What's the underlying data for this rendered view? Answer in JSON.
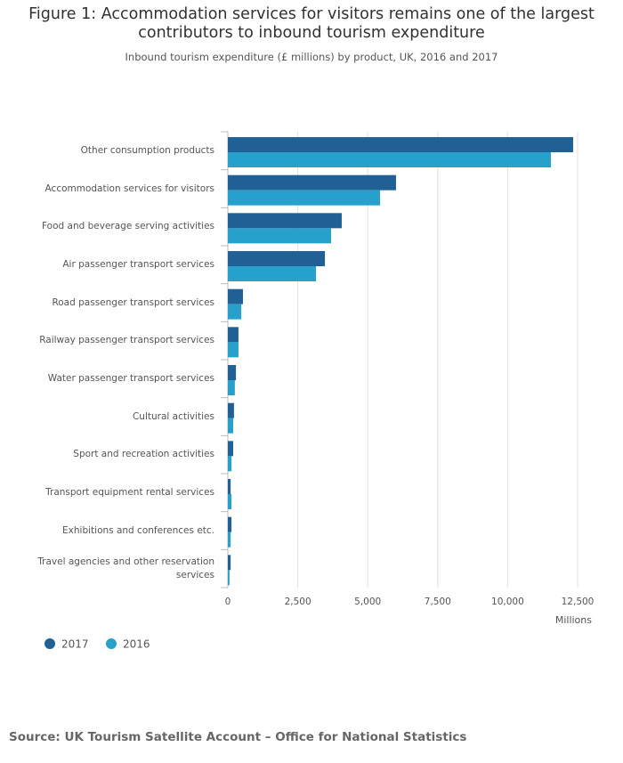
{
  "chart_data": {
    "type": "bar",
    "orientation": "horizontal",
    "title": "Figure 1: Accommodation services for visitors remains one of the largest contributors to inbound tourism expenditure",
    "subtitle": "Inbound tourism expenditure (£ millions) by product, UK, 2016 and 2017",
    "x_label": "Millions",
    "source": "Source: UK Tourism Satellite Account – Office for National Statistics",
    "categories": [
      "Other consumption products",
      "Accommodation services for visitors",
      "Food and beverage serving activities",
      "Air passenger transport services",
      "Road passenger transport services",
      "Railway passenger transport services",
      "Water passenger transport services",
      "Cultural activities",
      "Sport and recreation activities",
      "Transport equipment rental services",
      "Exhibitions and conferences etc.",
      "Travel agencies and other reservation services"
    ],
    "series": [
      {
        "name": "2017",
        "color": "#206095",
        "values": [
          12340,
          6010,
          4070,
          3470,
          540,
          380,
          290,
          220,
          190,
          100,
          130,
          100
        ]
      },
      {
        "name": "2016",
        "color": "#27a0cc",
        "values": [
          11545,
          5440,
          3690,
          3150,
          480,
          380,
          250,
          190,
          130,
          130,
          100,
          60
        ]
      }
    ],
    "xlim": [
      0,
      12500
    ],
    "xticks": [
      0,
      {
        "value": 2500,
        "label": "2,500"
      },
      {
        "value": 5000,
        "label": "5,000"
      },
      {
        "value": 7500,
        "label": "7,500"
      },
      {
        "value": 10000,
        "label": "10,000"
      },
      {
        "value": 12500,
        "label": "12,500"
      }
    ],
    "grid": true
  }
}
